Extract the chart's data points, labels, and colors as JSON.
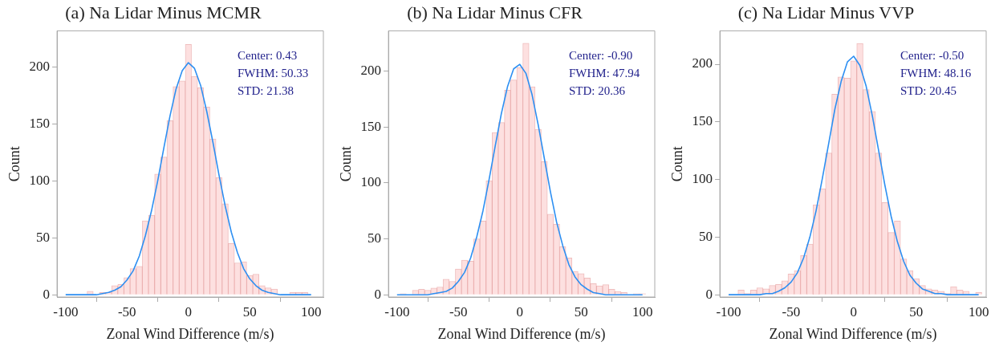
{
  "chart_data": [
    {
      "type": "histogram",
      "title": "(a) Na Lidar Minus MCMR",
      "xlabel": "Zonal Wind Difference (m/s)",
      "ylabel": "Count",
      "xlim": [
        -107,
        110
      ],
      "ylim": [
        -2,
        232
      ],
      "xticks": [
        -100,
        -50,
        0,
        50,
        100
      ],
      "yticks": [
        0,
        50,
        100,
        150,
        200
      ],
      "grid": false,
      "legend": false,
      "annotations": [
        "Center: 0.43",
        "FWHM: 50.33",
        "STD: 21.38"
      ],
      "bins": [
        -102.5,
        -97.5,
        -92.5,
        -87.5,
        -82.5,
        -77.5,
        -72.5,
        -67.5,
        -62.5,
        -57.5,
        -52.5,
        -47.5,
        -42.5,
        -37.5,
        -32.5,
        -27.5,
        -22.5,
        -17.5,
        -12.5,
        -7.5,
        -2.5,
        2.5,
        7.5,
        12.5,
        17.5,
        22.5,
        27.5,
        32.5,
        37.5,
        42.5,
        47.5,
        52.5,
        57.5,
        62.5,
        67.5,
        72.5,
        77.5,
        82.5,
        87.5,
        92.5,
        97.5,
        102.5
      ],
      "series": [
        {
          "type": "histogram",
          "color": "#fde0e0",
          "values": [
            0,
            0,
            0,
            0,
            3,
            0,
            2,
            2,
            8,
            9,
            15,
            23,
            25,
            65,
            70,
            106,
            121,
            153,
            183,
            188,
            220,
            192,
            182,
            165,
            137,
            103,
            80,
            45,
            28,
            29,
            17,
            18,
            8,
            6,
            5,
            0,
            0,
            2,
            2,
            2,
            0
          ]
        },
        {
          "type": "line",
          "color": "#2d8ff2",
          "x": [
            -100,
            -95,
            -90,
            -85,
            -80,
            -75,
            -70,
            -65,
            -60,
            -55,
            -50,
            -45,
            -40,
            -35,
            -30,
            -25,
            -20,
            -15,
            -10,
            -5,
            0,
            5,
            10,
            15,
            20,
            25,
            30,
            35,
            40,
            45,
            50,
            55,
            60,
            65,
            70,
            75,
            80,
            85,
            90,
            95,
            100
          ],
          "values": [
            0,
            0,
            0,
            0,
            0,
            0,
            1,
            2,
            4,
            7,
            13,
            21,
            34,
            52,
            74,
            100,
            129,
            157,
            181,
            197,
            204,
            199,
            184,
            161,
            134,
            105,
            78,
            55,
            37,
            23,
            14,
            8,
            4,
            2,
            1,
            0,
            0,
            0,
            0,
            0,
            0
          ]
        }
      ]
    },
    {
      "type": "histogram",
      "title": "(b) Na Lidar Minus CFR",
      "xlabel": "Zonal Wind Difference (m/s)",
      "ylabel": "Count",
      "xlim": [
        -107,
        110
      ],
      "ylim": [
        -2,
        236
      ],
      "xticks": [
        -100,
        -50,
        0,
        50,
        100
      ],
      "yticks": [
        0,
        50,
        100,
        150,
        200
      ],
      "grid": false,
      "legend": false,
      "annotations": [
        "Center: -0.90",
        "FWHM: 47.94",
        "STD: 20.36"
      ],
      "bins": [
        -102.5,
        -97.5,
        -92.5,
        -87.5,
        -82.5,
        -77.5,
        -72.5,
        -67.5,
        -62.5,
        -57.5,
        -52.5,
        -47.5,
        -42.5,
        -37.5,
        -32.5,
        -27.5,
        -22.5,
        -17.5,
        -12.5,
        -7.5,
        -2.5,
        2.5,
        7.5,
        12.5,
        17.5,
        22.5,
        27.5,
        32.5,
        37.5,
        42.5,
        47.5,
        52.5,
        57.5,
        62.5,
        67.5,
        72.5,
        77.5,
        82.5,
        87.5,
        92.5,
        97.5,
        102.5
      ],
      "series": [
        {
          "type": "histogram",
          "color": "#fde0e0",
          "values": [
            0,
            1,
            0,
            4,
            5,
            4,
            6,
            7,
            14,
            12,
            23,
            31,
            30,
            50,
            66,
            102,
            145,
            154,
            183,
            192,
            203,
            225,
            186,
            148,
            119,
            72,
            63,
            43,
            33,
            21,
            19,
            15,
            10,
            8,
            9,
            5,
            3,
            2,
            0,
            1,
            1
          ]
        },
        {
          "type": "line",
          "color": "#2d8ff2",
          "x": [
            -100,
            -95,
            -90,
            -85,
            -80,
            -75,
            -70,
            -65,
            -60,
            -55,
            -50,
            -45,
            -40,
            -35,
            -30,
            -25,
            -20,
            -15,
            -10,
            -5,
            0,
            5,
            10,
            15,
            20,
            25,
            30,
            35,
            40,
            45,
            50,
            55,
            60,
            65,
            70,
            75,
            80,
            85,
            90,
            95,
            100
          ],
          "values": [
            0,
            0,
            0,
            0,
            0,
            0,
            1,
            2,
            3,
            6,
            12,
            20,
            33,
            52,
            75,
            103,
            133,
            162,
            186,
            202,
            206,
            198,
            179,
            152,
            122,
            92,
            65,
            44,
            27,
            16,
            9,
            5,
            2,
            1,
            0,
            0,
            0,
            0,
            0,
            0,
            0
          ]
        }
      ]
    },
    {
      "type": "histogram",
      "title": "(c) Na Lidar Minus VVP",
      "xlabel": "Zonal Wind Difference (m/s)",
      "ylabel": "Count",
      "xlim": [
        -107,
        106
      ],
      "ylim": [
        -2,
        229
      ],
      "xticks": [
        -100,
        -50,
        0,
        50,
        100
      ],
      "yticks": [
        0,
        50,
        100,
        150,
        200
      ],
      "grid": false,
      "legend": false,
      "annotations": [
        "Center: -0.50",
        "FWHM: 48.16",
        "STD: 20.45"
      ],
      "bins": [
        -102.5,
        -97.5,
        -92.5,
        -87.5,
        -82.5,
        -77.5,
        -72.5,
        -67.5,
        -62.5,
        -57.5,
        -52.5,
        -47.5,
        -42.5,
        -37.5,
        -32.5,
        -27.5,
        -22.5,
        -17.5,
        -12.5,
        -7.5,
        -2.5,
        2.5,
        7.5,
        12.5,
        17.5,
        22.5,
        27.5,
        32.5,
        37.5,
        42.5,
        47.5,
        52.5,
        57.5,
        62.5,
        67.5,
        72.5,
        77.5,
        82.5,
        87.5,
        92.5,
        97.5,
        102.5
      ],
      "series": [
        {
          "type": "histogram",
          "color": "#fde0e0",
          "values": [
            0,
            0,
            4,
            1,
            4,
            6,
            5,
            8,
            9,
            12,
            18,
            21,
            34,
            44,
            78,
            92,
            123,
            174,
            189,
            188,
            203,
            218,
            178,
            159,
            123,
            80,
            54,
            64,
            31,
            21,
            14,
            8,
            5,
            4,
            3,
            1,
            7,
            4,
            3,
            0,
            2
          ]
        },
        {
          "type": "line",
          "color": "#2d8ff2",
          "x": [
            -100,
            -95,
            -90,
            -85,
            -80,
            -75,
            -70,
            -65,
            -60,
            -55,
            -50,
            -45,
            -40,
            -35,
            -30,
            -25,
            -20,
            -15,
            -10,
            -5,
            0,
            5,
            10,
            15,
            20,
            25,
            30,
            35,
            40,
            45,
            50,
            55,
            60,
            65,
            70,
            75,
            80,
            85,
            90,
            95,
            100
          ],
          "values": [
            0,
            0,
            0,
            0,
            0,
            0,
            1,
            1,
            3,
            6,
            11,
            19,
            32,
            50,
            73,
            101,
            131,
            161,
            185,
            202,
            207,
            199,
            181,
            155,
            125,
            95,
            68,
            46,
            29,
            17,
            10,
            5,
            3,
            1,
            1,
            0,
            0,
            0,
            0,
            0,
            0
          ]
        }
      ]
    }
  ]
}
